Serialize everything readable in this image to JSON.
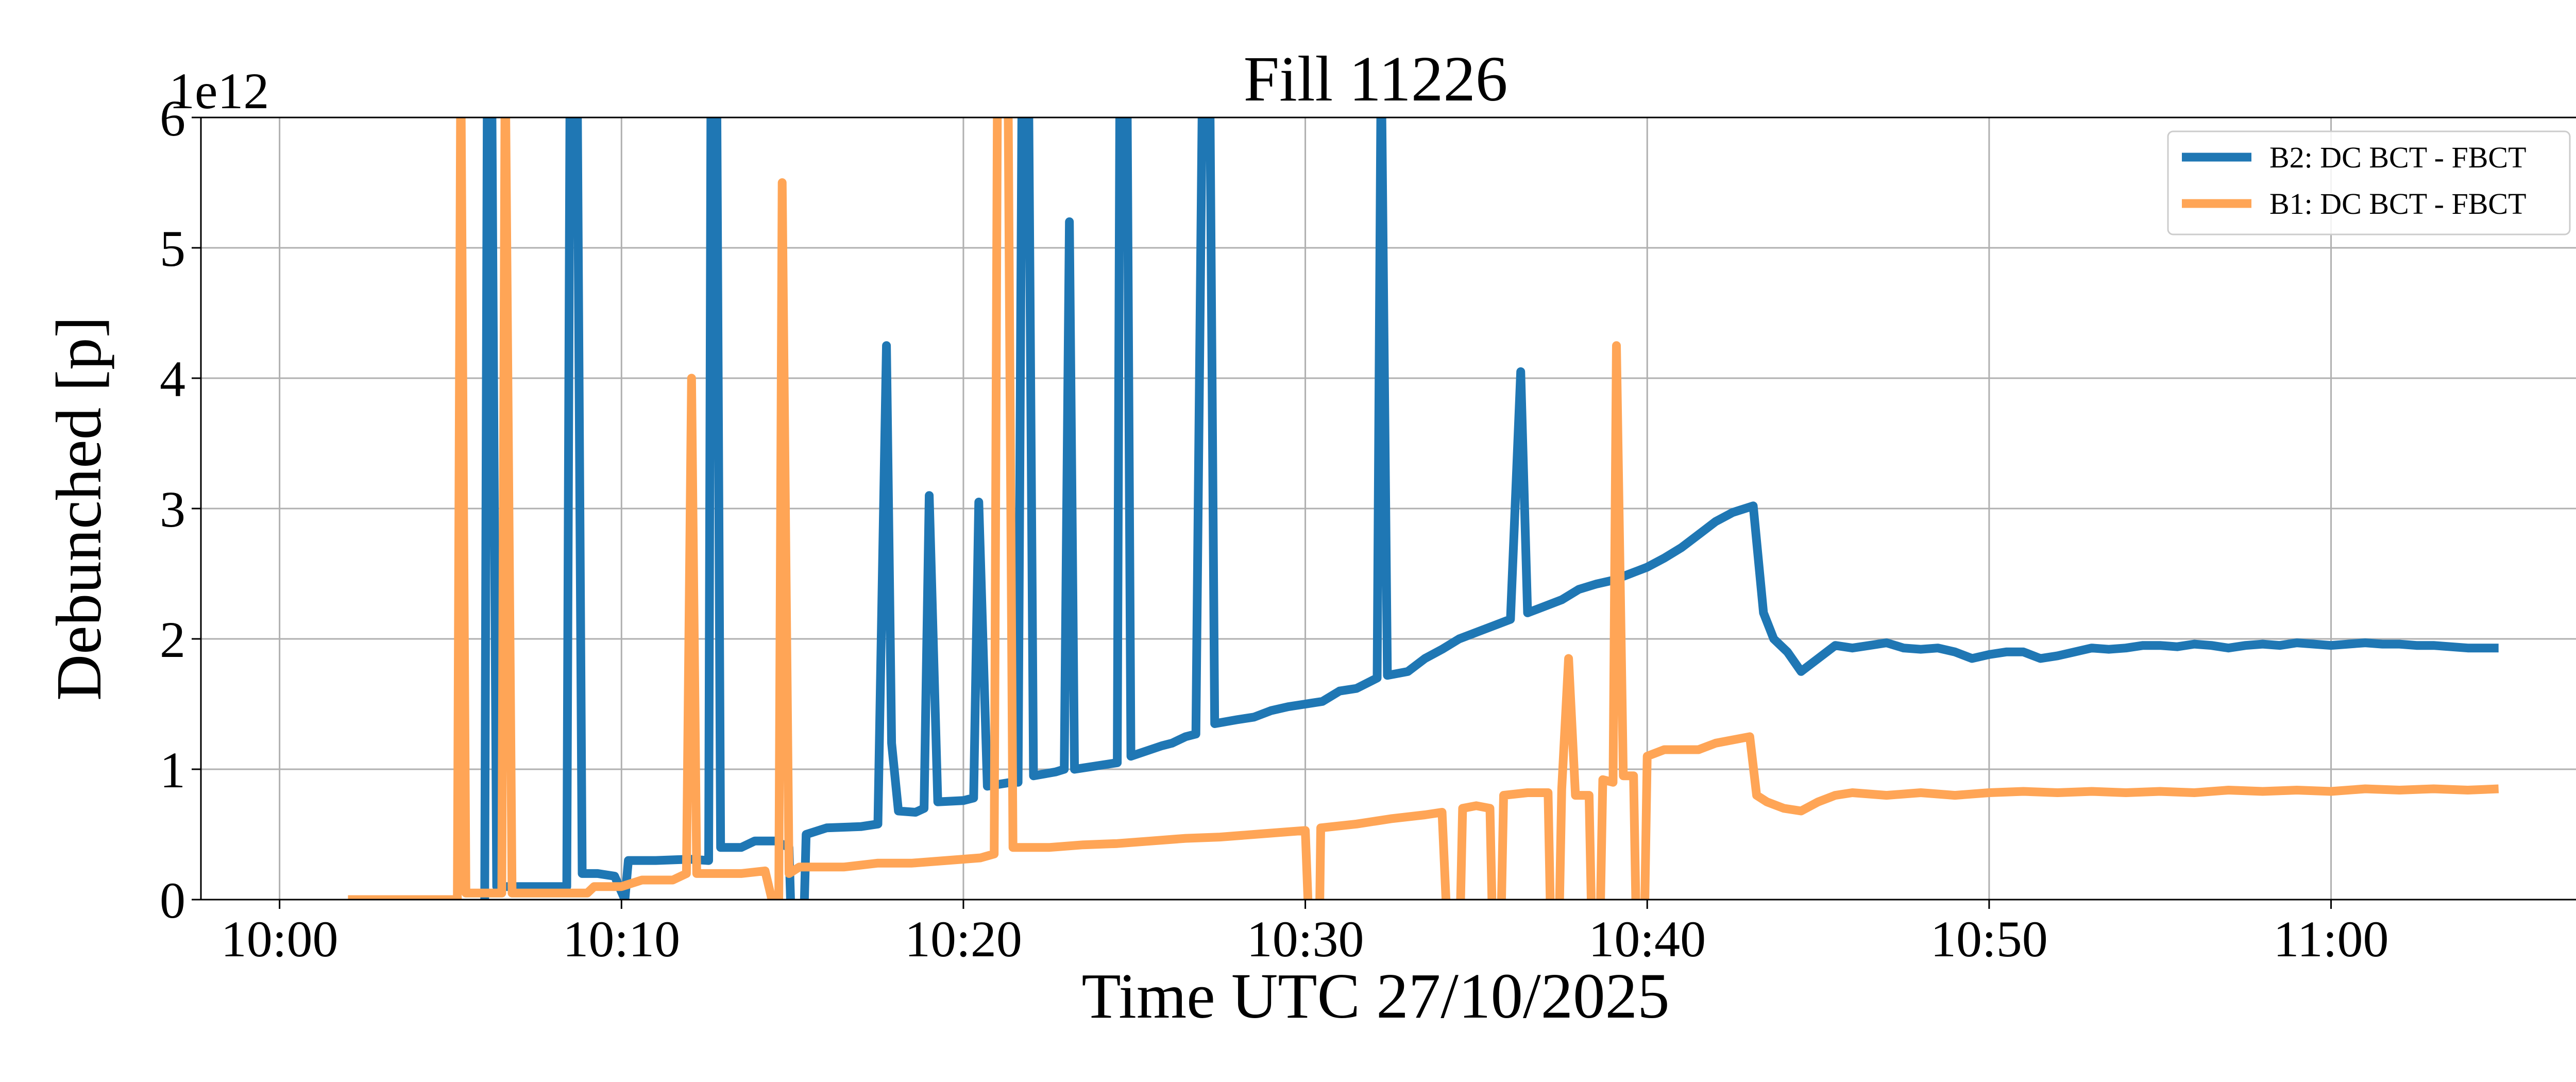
{
  "chart_data": {
    "type": "line",
    "title": "Fill 11226",
    "xlabel": "Time UTC 27/10/2025",
    "ylabel": "Debunched [p]",
    "y_offset_text": "1e12",
    "x_unit": "minutes after 10:00 UTC",
    "xlim": [
      -2.3,
      67.3
    ],
    "ylim": [
      0,
      6
    ],
    "x_ticks": [
      {
        "value": 0,
        "label": "10:00"
      },
      {
        "value": 10,
        "label": "10:10"
      },
      {
        "value": 20,
        "label": "10:20"
      },
      {
        "value": 30,
        "label": "10:30"
      },
      {
        "value": 40,
        "label": "10:40"
      },
      {
        "value": 50,
        "label": "10:50"
      },
      {
        "value": 60,
        "label": "11:00"
      }
    ],
    "y_ticks": [
      {
        "value": 0,
        "label": "0"
      },
      {
        "value": 1,
        "label": "1"
      },
      {
        "value": 2,
        "label": "2"
      },
      {
        "value": 3,
        "label": "3"
      },
      {
        "value": 4,
        "label": "4"
      },
      {
        "value": 5,
        "label": "5"
      },
      {
        "value": 6,
        "label": "6"
      }
    ],
    "grid": true,
    "legend_position": "top-right",
    "series": [
      {
        "name": "B2: DC BCT - FBCT",
        "color": "#1f77b4",
        "points": [
          [
            6.0,
            0
          ],
          [
            6.08,
            6.5
          ],
          [
            6.2,
            6.5
          ],
          [
            6.35,
            0.1
          ],
          [
            8.4,
            0.1
          ],
          [
            8.5,
            6.5
          ],
          [
            8.7,
            6.5
          ],
          [
            8.85,
            0.2
          ],
          [
            9.3,
            0.2
          ],
          [
            9.8,
            0.18
          ],
          [
            10.1,
            0
          ],
          [
            10.2,
            0.3
          ],
          [
            11.0,
            0.3
          ],
          [
            12.0,
            0.31
          ],
          [
            12.55,
            0.3
          ],
          [
            12.62,
            6.5
          ],
          [
            12.78,
            6.5
          ],
          [
            12.9,
            0.4
          ],
          [
            13.5,
            0.4
          ],
          [
            13.9,
            0.45
          ],
          [
            14.5,
            0.45
          ],
          [
            14.9,
            0.4
          ],
          [
            15.0,
            -0.5
          ],
          [
            15.3,
            -0.5
          ],
          [
            15.4,
            0.5
          ],
          [
            16.0,
            0.55
          ],
          [
            17.0,
            0.56
          ],
          [
            17.5,
            0.58
          ],
          [
            17.75,
            4.25
          ],
          [
            17.9,
            1.2
          ],
          [
            18.1,
            0.68
          ],
          [
            18.6,
            0.67
          ],
          [
            18.85,
            0.7
          ],
          [
            19.0,
            3.1
          ],
          [
            19.25,
            0.75
          ],
          [
            20.0,
            0.76
          ],
          [
            20.3,
            0.78
          ],
          [
            20.45,
            3.05
          ],
          [
            20.7,
            0.87
          ],
          [
            21.4,
            0.9
          ],
          [
            21.6,
            0.9
          ],
          [
            21.72,
            6.5
          ],
          [
            21.9,
            6.5
          ],
          [
            22.05,
            0.95
          ],
          [
            22.7,
            0.98
          ],
          [
            22.95,
            1.0
          ],
          [
            23.1,
            5.2
          ],
          [
            23.25,
            1.0
          ],
          [
            24.0,
            1.03
          ],
          [
            24.5,
            1.05
          ],
          [
            24.58,
            6.5
          ],
          [
            24.78,
            6.5
          ],
          [
            24.9,
            1.1
          ],
          [
            25.8,
            1.18
          ],
          [
            26.1,
            1.2
          ],
          [
            26.5,
            1.25
          ],
          [
            26.8,
            1.27
          ],
          [
            27.0,
            6.5
          ],
          [
            27.2,
            6.5
          ],
          [
            27.35,
            1.35
          ],
          [
            28.0,
            1.38
          ],
          [
            28.5,
            1.4
          ],
          [
            29.0,
            1.45
          ],
          [
            29.5,
            1.48
          ],
          [
            30.0,
            1.5
          ],
          [
            30.5,
            1.52
          ],
          [
            31.0,
            1.6
          ],
          [
            31.5,
            1.62
          ],
          [
            32.1,
            1.7
          ],
          [
            32.22,
            6.5
          ],
          [
            32.4,
            1.72
          ],
          [
            33.0,
            1.75
          ],
          [
            33.5,
            1.85
          ],
          [
            34.0,
            1.92
          ],
          [
            34.5,
            2.0
          ],
          [
            35.0,
            2.05
          ],
          [
            35.5,
            2.1
          ],
          [
            36.0,
            2.15
          ],
          [
            36.3,
            4.05
          ],
          [
            36.5,
            2.2
          ],
          [
            37.0,
            2.25
          ],
          [
            37.5,
            2.3
          ],
          [
            38.0,
            2.38
          ],
          [
            38.5,
            2.42
          ],
          [
            39.0,
            2.45
          ],
          [
            39.5,
            2.5
          ],
          [
            40.0,
            2.55
          ],
          [
            40.5,
            2.62
          ],
          [
            41.0,
            2.7
          ],
          [
            41.5,
            2.8
          ],
          [
            42.0,
            2.9
          ],
          [
            42.5,
            2.97
          ],
          [
            43.1,
            3.02
          ],
          [
            43.4,
            2.2
          ],
          [
            43.7,
            2.0
          ],
          [
            44.1,
            1.9
          ],
          [
            44.5,
            1.75
          ],
          [
            45.0,
            1.85
          ],
          [
            45.5,
            1.95
          ],
          [
            46.0,
            1.93
          ],
          [
            46.5,
            1.95
          ],
          [
            47.0,
            1.97
          ],
          [
            47.5,
            1.93
          ],
          [
            48.0,
            1.92
          ],
          [
            48.5,
            1.93
          ],
          [
            49.0,
            1.9
          ],
          [
            49.5,
            1.85
          ],
          [
            50.0,
            1.88
          ],
          [
            50.5,
            1.9
          ],
          [
            51.0,
            1.9
          ],
          [
            51.5,
            1.85
          ],
          [
            52.0,
            1.87
          ],
          [
            52.5,
            1.9
          ],
          [
            53.0,
            1.93
          ],
          [
            53.5,
            1.92
          ],
          [
            54.0,
            1.93
          ],
          [
            54.5,
            1.95
          ],
          [
            55.0,
            1.95
          ],
          [
            55.5,
            1.94
          ],
          [
            56.0,
            1.96
          ],
          [
            56.5,
            1.95
          ],
          [
            57.0,
            1.93
          ],
          [
            57.5,
            1.95
          ],
          [
            58.0,
            1.96
          ],
          [
            58.5,
            1.95
          ],
          [
            59.0,
            1.97
          ],
          [
            59.5,
            1.96
          ],
          [
            60.0,
            1.95
          ],
          [
            60.5,
            1.96
          ],
          [
            61.0,
            1.97
          ],
          [
            61.5,
            1.96
          ],
          [
            62.0,
            1.96
          ],
          [
            62.5,
            1.95
          ],
          [
            63.0,
            1.95
          ],
          [
            63.5,
            1.94
          ],
          [
            64.0,
            1.93
          ],
          [
            64.5,
            1.93
          ],
          [
            64.9,
            1.93
          ]
        ]
      },
      {
        "name": "B1: DC BCT - FBCT",
        "color": "#ffa556",
        "points": [
          [
            2.0,
            0
          ],
          [
            5.2,
            0
          ],
          [
            5.3,
            6.5
          ],
          [
            5.45,
            0.05
          ],
          [
            6.5,
            0.05
          ],
          [
            6.6,
            6.5
          ],
          [
            6.8,
            0.05
          ],
          [
            9.0,
            0.05
          ],
          [
            9.2,
            0.1
          ],
          [
            10.0,
            0.1
          ],
          [
            10.6,
            0.15
          ],
          [
            11.5,
            0.15
          ],
          [
            11.9,
            0.2
          ],
          [
            12.05,
            4.0
          ],
          [
            12.2,
            0.2
          ],
          [
            13.5,
            0.2
          ],
          [
            14.2,
            0.22
          ],
          [
            14.4,
            0.0
          ],
          [
            14.6,
            0.0
          ],
          [
            14.7,
            5.5
          ],
          [
            14.9,
            0.2
          ],
          [
            15.2,
            0.25
          ],
          [
            16.5,
            0.25
          ],
          [
            17.5,
            0.28
          ],
          [
            18.5,
            0.28
          ],
          [
            19.5,
            0.3
          ],
          [
            20.5,
            0.32
          ],
          [
            20.9,
            0.35
          ],
          [
            21.0,
            6.5
          ],
          [
            21.3,
            6.5
          ],
          [
            21.45,
            0.4
          ],
          [
            22.5,
            0.4
          ],
          [
            23.5,
            0.42
          ],
          [
            24.5,
            0.43
          ],
          [
            25.5,
            0.45
          ],
          [
            26.5,
            0.47
          ],
          [
            27.5,
            0.48
          ],
          [
            28.5,
            0.5
          ],
          [
            29.5,
            0.52
          ],
          [
            30.0,
            0.53
          ],
          [
            30.15,
            -0.5
          ],
          [
            30.4,
            -0.5
          ],
          [
            30.45,
            0.55
          ],
          [
            31.5,
            0.58
          ],
          [
            32.5,
            0.62
          ],
          [
            33.5,
            0.65
          ],
          [
            34.0,
            0.67
          ],
          [
            34.2,
            -0.5
          ],
          [
            34.5,
            -0.5
          ],
          [
            34.6,
            0.7
          ],
          [
            35.0,
            0.72
          ],
          [
            35.4,
            0.7
          ],
          [
            35.5,
            -0.5
          ],
          [
            35.7,
            -0.5
          ],
          [
            35.8,
            0.8
          ],
          [
            36.5,
            0.82
          ],
          [
            37.1,
            0.82
          ],
          [
            37.2,
            -0.5
          ],
          [
            37.4,
            -0.5
          ],
          [
            37.5,
            0.85
          ],
          [
            37.7,
            1.85
          ],
          [
            37.9,
            0.8
          ],
          [
            38.3,
            0.8
          ],
          [
            38.4,
            -0.5
          ],
          [
            38.6,
            -0.5
          ],
          [
            38.7,
            0.92
          ],
          [
            39.0,
            0.9
          ],
          [
            39.1,
            4.25
          ],
          [
            39.3,
            0.95
          ],
          [
            39.6,
            0.95
          ],
          [
            39.7,
            -0.5
          ],
          [
            39.9,
            -0.5
          ],
          [
            40.0,
            1.1
          ],
          [
            40.5,
            1.15
          ],
          [
            41.5,
            1.15
          ],
          [
            42.0,
            1.2
          ],
          [
            43.0,
            1.25
          ],
          [
            43.2,
            0.8
          ],
          [
            43.5,
            0.75
          ],
          [
            44.0,
            0.7
          ],
          [
            44.5,
            0.68
          ],
          [
            45.0,
            0.75
          ],
          [
            45.5,
            0.8
          ],
          [
            46.0,
            0.82
          ],
          [
            47.0,
            0.8
          ],
          [
            48.0,
            0.82
          ],
          [
            49.0,
            0.8
          ],
          [
            50.0,
            0.82
          ],
          [
            51.0,
            0.83
          ],
          [
            52.0,
            0.82
          ],
          [
            53.0,
            0.83
          ],
          [
            54.0,
            0.82
          ],
          [
            55.0,
            0.83
          ],
          [
            56.0,
            0.82
          ],
          [
            57.0,
            0.84
          ],
          [
            58.0,
            0.83
          ],
          [
            59.0,
            0.84
          ],
          [
            60.0,
            0.83
          ],
          [
            61.0,
            0.85
          ],
          [
            62.0,
            0.84
          ],
          [
            63.0,
            0.85
          ],
          [
            64.0,
            0.84
          ],
          [
            64.9,
            0.85
          ]
        ]
      }
    ]
  }
}
